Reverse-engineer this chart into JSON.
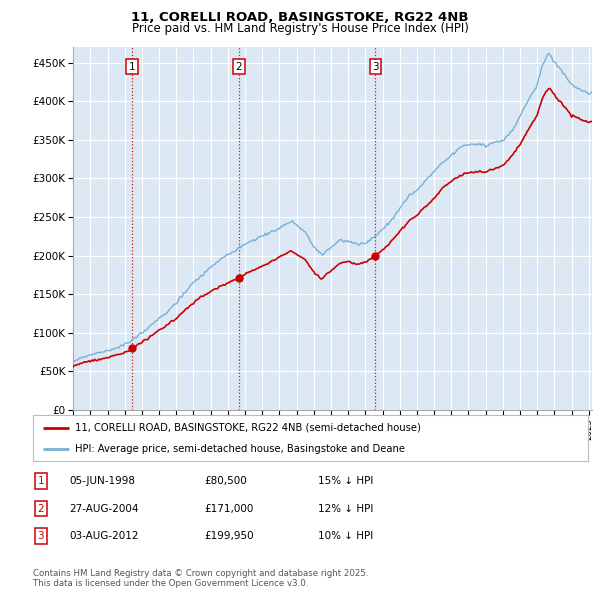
{
  "title1": "11, CORELLI ROAD, BASINGSTOKE, RG22 4NB",
  "title2": "Price paid vs. HM Land Registry's House Price Index (HPI)",
  "background_color": "#ffffff",
  "plot_bg_color": "#dce9f5",
  "grid_color": "#ffffff",
  "sale_dates": [
    1998.44,
    2004.65,
    2012.59
  ],
  "sale_prices": [
    80500,
    171000,
    199950
  ],
  "sale_labels": [
    "1",
    "2",
    "3"
  ],
  "vline_color": "#cc0000",
  "red_line_color": "#cc0000",
  "blue_line_color": "#7aafd4",
  "ylim": [
    0,
    470000
  ],
  "xlim": [
    1995.0,
    2025.2
  ],
  "legend_label_red": "11, CORELLI ROAD, BASINGSTOKE, RG22 4NB (semi-detached house)",
  "legend_label_blue": "HPI: Average price, semi-detached house, Basingstoke and Deane",
  "table_entries": [
    {
      "num": "1",
      "date": "05-JUN-1998",
      "price": "£80,500",
      "hpi": "15% ↓ HPI"
    },
    {
      "num": "2",
      "date": "27-AUG-2004",
      "price": "£171,000",
      "hpi": "12% ↓ HPI"
    },
    {
      "num": "3",
      "date": "03-AUG-2012",
      "price": "£199,950",
      "hpi": "10% ↓ HPI"
    }
  ],
  "footnote": "Contains HM Land Registry data © Crown copyright and database right 2025.\nThis data is licensed under the Open Government Licence v3.0."
}
